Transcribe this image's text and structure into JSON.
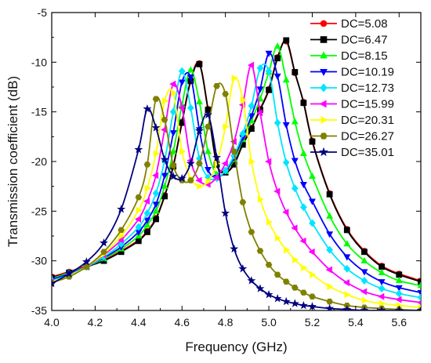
{
  "chart_data": {
    "type": "line",
    "title": "",
    "xlabel": "Frequency (GHz)",
    "ylabel": "Transmission coefficient (dB)",
    "xlim": [
      4.0,
      5.7
    ],
    "ylim": [
      -35,
      -5
    ],
    "x_ticks": [
      4.0,
      4.2,
      4.4,
      4.6,
      4.8,
      5.0,
      5.2,
      5.4,
      5.6
    ],
    "x_tick_labels": [
      "4.0",
      "4.2",
      "4.4",
      "4.6",
      "4.8",
      "5.0",
      "5.2",
      "5.4",
      "5.6"
    ],
    "y_ticks": [
      -35,
      -30,
      -25,
      -20,
      -15,
      -10,
      -5
    ],
    "y_tick_labels": [
      "-35",
      "-30",
      "-25",
      "-20",
      "-15",
      "-10",
      "-5"
    ],
    "grid": false,
    "legend_position": "top-right",
    "x": [
      4.0,
      4.08,
      4.16,
      4.24,
      4.32,
      4.4,
      4.44,
      4.48,
      4.52,
      4.56,
      4.6,
      4.64,
      4.68,
      4.72,
      4.76,
      4.8,
      4.84,
      4.88,
      4.92,
      4.96,
      5.0,
      5.04,
      5.08,
      5.12,
      5.16,
      5.2,
      5.28,
      5.36,
      5.44,
      5.52,
      5.6,
      5.7
    ],
    "series": [
      {
        "name": "DC=5.08",
        "color": "#ff0000",
        "marker": "circle",
        "values": [
          -31.6,
          -31.1,
          -30.5,
          -29.9,
          -29.0,
          -27.9,
          -27.0,
          -25.7,
          -23.4,
          -20.4,
          -16.0,
          -11.8,
          -10.1,
          -14.7,
          -20.2,
          -21.0,
          -20.2,
          -18.2,
          -16.6,
          -14.7,
          -12.7,
          -9.5,
          -7.9,
          -11.1,
          -14.0,
          -17.9,
          -23.2,
          -26.8,
          -29.0,
          -30.5,
          -31.3,
          -32.0
        ]
      },
      {
        "name": "DC=6.47",
        "color": "#000000",
        "marker": "square",
        "values": [
          -31.7,
          -31.2,
          -30.6,
          -30.0,
          -29.1,
          -28.0,
          -27.1,
          -25.8,
          -23.5,
          -20.5,
          -16.1,
          -11.9,
          -10.2,
          -14.8,
          -20.3,
          -21.1,
          -20.3,
          -18.3,
          -16.7,
          -14.8,
          -12.8,
          -9.6,
          -7.8,
          -11.0,
          -14.1,
          -18.0,
          -23.3,
          -26.9,
          -29.1,
          -30.6,
          -31.4,
          -32.1
        ]
      },
      {
        "name": "DC=8.15",
        "color": "#00ff00",
        "marker": "triangle-up",
        "values": [
          -31.8,
          -31.2,
          -30.6,
          -29.8,
          -28.8,
          -27.5,
          -26.4,
          -25.0,
          -22.5,
          -19.0,
          -14.3,
          -10.8,
          -14.0,
          -19.0,
          -21.3,
          -21.0,
          -19.8,
          -17.8,
          -15.9,
          -13.7,
          -11.0,
          -8.4,
          -11.8,
          -16.0,
          -19.2,
          -21.5,
          -25.5,
          -28.3,
          -30.0,
          -31.2,
          -32.0,
          -32.5
        ]
      },
      {
        "name": "DC=10.19",
        "color": "#0000ff",
        "marker": "triangle-down",
        "values": [
          -31.9,
          -31.3,
          -30.6,
          -29.7,
          -28.6,
          -27.1,
          -25.9,
          -24.3,
          -21.4,
          -17.1,
          -12.0,
          -11.5,
          -16.8,
          -20.8,
          -21.6,
          -21.0,
          -19.6,
          -17.6,
          -15.4,
          -12.7,
          -9.1,
          -11.4,
          -16.3,
          -19.9,
          -22.3,
          -24.0,
          -27.3,
          -29.6,
          -31.1,
          -32.1,
          -32.7,
          -33.2
        ]
      },
      {
        "name": "DC=12.73",
        "color": "#00e5ff",
        "marker": "diamond",
        "values": [
          -32.0,
          -31.4,
          -30.6,
          -29.6,
          -28.3,
          -26.6,
          -25.2,
          -23.2,
          -19.9,
          -15.0,
          -10.9,
          -14.6,
          -19.7,
          -21.6,
          -21.7,
          -20.9,
          -19.4,
          -17.2,
          -14.4,
          -10.6,
          -10.9,
          -16.1,
          -20.1,
          -22.7,
          -24.6,
          -26.2,
          -28.9,
          -30.8,
          -32.0,
          -32.8,
          -33.3,
          -33.7
        ]
      },
      {
        "name": "DC=15.99",
        "color": "#ff00ff",
        "marker": "triangle-left",
        "values": [
          -32.1,
          -31.5,
          -30.6,
          -29.4,
          -27.9,
          -25.8,
          -24.0,
          -21.4,
          -16.8,
          -12.2,
          -14.6,
          -19.9,
          -21.9,
          -22.3,
          -21.6,
          -20.2,
          -18.0,
          -14.3,
          -10.3,
          -15.1,
          -20.0,
          -23.0,
          -25.1,
          -26.7,
          -28.0,
          -29.1,
          -30.9,
          -32.2,
          -33.1,
          -33.6,
          -33.9,
          -34.2
        ]
      },
      {
        "name": "DC=20.31",
        "color": "#ffff00",
        "marker": "triangle-right",
        "values": [
          -32.1,
          -31.5,
          -30.6,
          -29.3,
          -27.5,
          -24.9,
          -22.7,
          -19.2,
          -13.9,
          -13.1,
          -19.0,
          -21.7,
          -22.5,
          -22.0,
          -20.2,
          -16.5,
          -11.6,
          -13.8,
          -20.0,
          -23.8,
          -26.1,
          -27.7,
          -28.9,
          -29.9,
          -30.7,
          -31.4,
          -32.6,
          -33.4,
          -34.0,
          -34.3,
          -34.5,
          -34.7
        ]
      },
      {
        "name": "DC=26.27",
        "color": "#808000",
        "marker": "hexagon",
        "values": [
          -32.2,
          -31.6,
          -30.6,
          -29.1,
          -26.9,
          -23.6,
          -20.3,
          -13.7,
          -15.8,
          -20.4,
          -21.9,
          -21.9,
          -20.2,
          -16.5,
          -12.4,
          -13.2,
          -19.0,
          -24.1,
          -27.1,
          -29.0,
          -30.4,
          -31.4,
          -32.1,
          -32.7,
          -33.2,
          -33.6,
          -34.1,
          -34.5,
          -34.7,
          -34.8,
          -34.9,
          -35.0
        ]
      },
      {
        "name": "DC=35.01",
        "color": "#000080",
        "marker": "star",
        "values": [
          -32.3,
          -31.3,
          -30.1,
          -28.2,
          -24.8,
          -18.8,
          -14.7,
          -16.6,
          -19.8,
          -21.5,
          -21.7,
          -20.2,
          -16.9,
          -15.3,
          -19.6,
          -25.2,
          -28.8,
          -30.8,
          -32.0,
          -32.8,
          -33.4,
          -33.8,
          -34.1,
          -34.3,
          -34.5,
          -34.6,
          -34.8,
          -34.9,
          -35.0,
          -35.0,
          -35.0,
          -35.0
        ]
      }
    ]
  }
}
